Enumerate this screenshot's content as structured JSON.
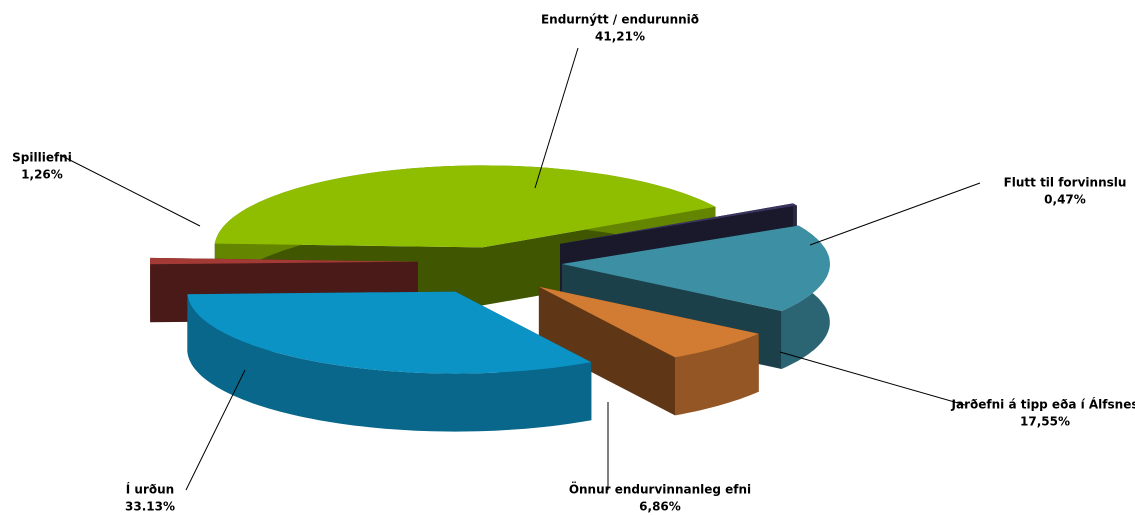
{
  "chart_data": {
    "type": "pie3d",
    "categories": [
      "Endurnýtt / endurunnið",
      "Flutt til forvinnslu",
      "Jarðefni á tipp eða í Álfsnes",
      "Önnur endurvinnanleg  efni",
      "Í urðun",
      "Spilliefni"
    ],
    "values": [
      41.21,
      0.47,
      17.55,
      6.86,
      33.13,
      1.26
    ],
    "value_labels": [
      "41,21%",
      "0,47%",
      "17,55%",
      "6,86%",
      "33.13%",
      "1,26%"
    ],
    "colors": [
      "#8fbe00",
      "#3a3560",
      "#3d8fa3",
      "#d27b33",
      "#0b93c6",
      "#a33a35"
    ]
  }
}
